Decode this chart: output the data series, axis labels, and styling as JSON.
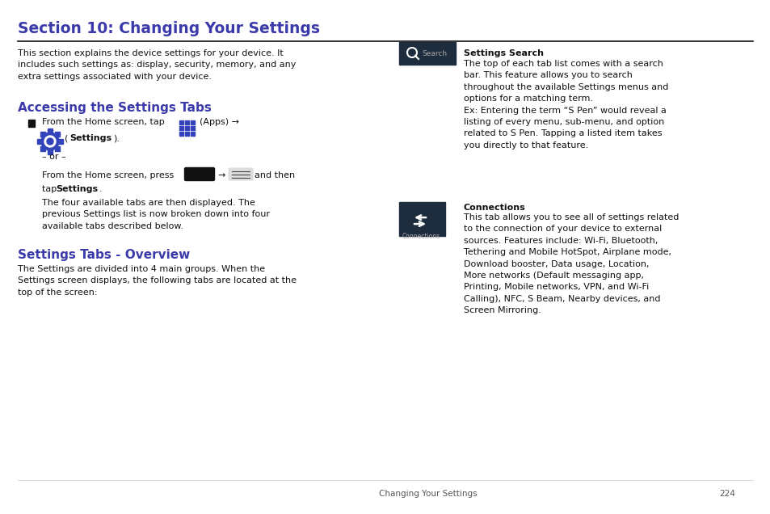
{
  "page_bg": "#ffffff",
  "title": "Section 10: Changing Your Settings",
  "title_color": "#3a3aaa",
  "title_fontsize": 13.5,
  "heading1": "Accessing the Settings Tabs",
  "heading1_color": "#3a3aaa",
  "heading1_fontsize": 11,
  "heading2": "Settings Tabs - Overview",
  "heading2_color": "#3a3aaa",
  "heading2_fontsize": 11,
  "body_color": "#111111",
  "body_fontsize": 8.0,
  "icon_bg": "#1e2d3d",
  "footer_text": "Changing Your Settings",
  "footer_page": "224",
  "intro": "This section explains the device settings for your device. It\nincludes such settings as: display, security, memory, and any\nextra settings associated with your device.",
  "accessing_bullet1a": "From the Home screen, tap",
  "accessing_bullet1b": "(Apps) →",
  "accessing_bullet1c": "(​Settings).",
  "accessing_or": "– or –",
  "accessing_line2a": "From the Home screen, press",
  "accessing_line2b": "→",
  "accessing_line2c": "and then",
  "accessing_line3": "tap ​Settings.",
  "accessing_body": "The four available tabs are then displayed. The\nprevious Settings list is now broken down into four\navailable tabs described below.",
  "overview_body": "The Settings are divided into 4 main groups. When the\nSettings screen displays, the following tabs are located at the\ntop of the screen:",
  "search_label": "Settings Search",
  "search_body": "The top of each tab list comes with a search\nbar. This feature allows you to search\nthroughout the available Settings menus and\noptions for a matching term.\nEx: Entering the term “S Pen” would reveal a\nlisting of every menu, sub-menu, and option\nrelated to S Pen. Tapping a listed item takes\nyou directly to that feature.",
  "conn_label": "Connections",
  "conn_body": "This tab allows you to see all of settings related\nto the connection of your device to external\nsources. Features include: Wi-Fi, Bluetooth,\nTethering and Mobile HotSpot, Airplane mode,\nDownload booster, Data usage, Location,\nMore networks (Default messaging app,\nPrinting, Mobile networks, VPN, and Wi-Fi\nCalling), NFC, S Beam, Nearby devices, and\nScreen Mirroring."
}
